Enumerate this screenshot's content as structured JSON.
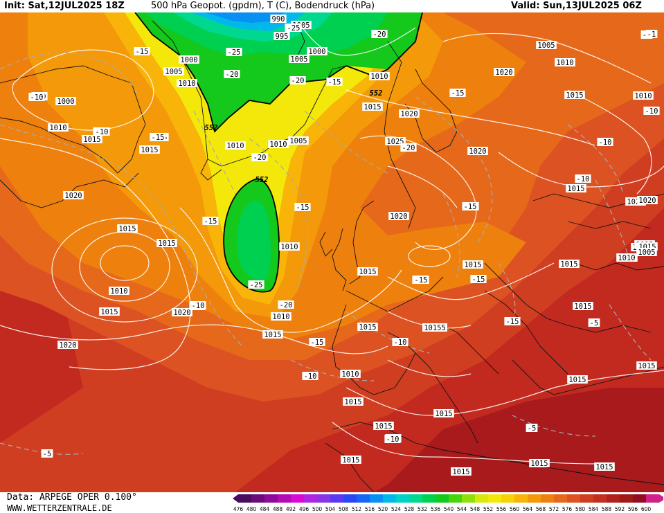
{
  "header": {
    "init": "Init: Sat,12JUL2025 18Z",
    "title": "500 hPa Geopot. (gpdm), T (C), Bodendruck (hPa)",
    "valid": "Valid: Sun,13JUL2025 06Z"
  },
  "footer": {
    "source": "Data: ARPEGE OPER 0.100°",
    "site": "WWW.WETTERZENTRALE.DE"
  },
  "legend": {
    "values": [
      "476",
      "480",
      "484",
      "488",
      "492",
      "496",
      "500",
      "504",
      "508",
      "512",
      "516",
      "520",
      "524",
      "528",
      "532",
      "536",
      "540",
      "544",
      "548",
      "552",
      "556",
      "560",
      "564",
      "568",
      "572",
      "576",
      "580",
      "584",
      "588",
      "592",
      "596",
      "600"
    ],
    "colors": [
      "#4b0b5e",
      "#6c0a7c",
      "#8f0a9a",
      "#b30ab8",
      "#d60ad4",
      "#b025e0",
      "#8a34e8",
      "#5a3af0",
      "#2a48f2",
      "#1566f4",
      "#0890f2",
      "#02b8ea",
      "#00d2c8",
      "#00d890",
      "#00d050",
      "#14c81c",
      "#46d40a",
      "#8ee00a",
      "#d6e80c",
      "#f4e80a",
      "#f8d008",
      "#f8b408",
      "#f49a0a",
      "#ee800e",
      "#e6681a",
      "#dc5222",
      "#d03e22",
      "#c22e20",
      "#b0201c",
      "#a01818",
      "#920c22",
      "#d0208a"
    ]
  },
  "isobar_labels": [
    {
      "t": "990"
    },
    {
      "t": "995"
    },
    {
      "t": "1000"
    },
    {
      "t": "1005"
    },
    {
      "t": "1005"
    },
    {
      "t": "1000"
    },
    {
      "t": "1005"
    },
    {
      "t": "1010"
    },
    {
      "t": "1000"
    },
    {
      "t": "1010"
    },
    {
      "t": "1015"
    },
    {
      "t": "1015"
    },
    {
      "t": "1010"
    },
    {
      "t": "1010"
    },
    {
      "t": "1005"
    },
    {
      "t": "1020"
    },
    {
      "t": "1025"
    },
    {
      "t": "1020"
    },
    {
      "t": "1010"
    },
    {
      "t": "1015"
    },
    {
      "t": "1020"
    },
    {
      "t": "1010"
    },
    {
      "t": "1005"
    },
    {
      "t": "1020"
    },
    {
      "t": "1015"
    },
    {
      "t": "1015"
    },
    {
      "t": "1010"
    },
    {
      "t": "1015"
    },
    {
      "t": "1020"
    },
    {
      "t": "1010"
    },
    {
      "t": "1015"
    },
    {
      "t": "1020"
    },
    {
      "t": "1015"
    },
    {
      "t": "1010"
    },
    {
      "t": "1015"
    },
    {
      "t": "1020"
    },
    {
      "t": "1015"
    },
    {
      "t": "1015"
    },
    {
      "t": "1010"
    },
    {
      "t": "1015"
    },
    {
      "t": "1020"
    },
    {
      "t": "1015"
    },
    {
      "t": "1010"
    },
    {
      "t": "10155"
    },
    {
      "t": "1015"
    },
    {
      "t": "1015"
    },
    {
      "t": "1015"
    },
    {
      "t": "1015"
    },
    {
      "t": "1015"
    },
    {
      "t": "1015"
    },
    {
      "t": "1015"
    },
    {
      "t": "1015"
    },
    {
      "t": "1010"
    },
    {
      "t": "1015"
    },
    {
      "t": "1015"
    },
    {
      "t": "1015"
    },
    {
      "t": "1020"
    },
    {
      "t": "1015"
    },
    {
      "t": "1015"
    },
    {
      "t": "1010"
    },
    {
      "t": "1005"
    }
  ],
  "temp_labels": [
    {
      "t": "-25"
    },
    {
      "t": "-25"
    },
    {
      "t": "-20"
    },
    {
      "t": "-15"
    },
    {
      "t": "-10"
    },
    {
      "t": "-10"
    },
    {
      "t": "-15"
    },
    {
      "t": "-20"
    },
    {
      "t": "-20"
    },
    {
      "t": "-15"
    },
    {
      "t": "-15"
    },
    {
      "t": "-15"
    },
    {
      "t": "-10"
    },
    {
      "t": "-10"
    },
    {
      "t": "-15"
    },
    {
      "t": "-15"
    },
    {
      "t": "-10"
    },
    {
      "t": "-20"
    },
    {
      "t": "-25"
    },
    {
      "t": "-10"
    },
    {
      "t": "-15"
    },
    {
      "t": "-10"
    },
    {
      "t": "-10"
    },
    {
      "t": "-15"
    },
    {
      "t": "-15"
    },
    {
      "t": "-10"
    },
    {
      "t": "-15"
    },
    {
      "t": "-5"
    },
    {
      "t": "-5"
    },
    {
      "t": "-10"
    },
    {
      "t": "-10"
    },
    {
      "t": "-5"
    },
    {
      "t": "-5"
    },
    {
      "t": "-1"
    },
    {
      "t": "-15"
    },
    {
      "t": "-10"
    },
    {
      "t": "-10"
    },
    {
      "t": "-15"
    },
    {
      "t": "-15"
    },
    {
      "t": "-25"
    },
    {
      "t": "-20"
    },
    {
      "t": "-20"
    }
  ],
  "geopot_labels": [
    {
      "t": "552"
    },
    {
      "t": "552"
    },
    {
      "t": "552"
    }
  ]
}
